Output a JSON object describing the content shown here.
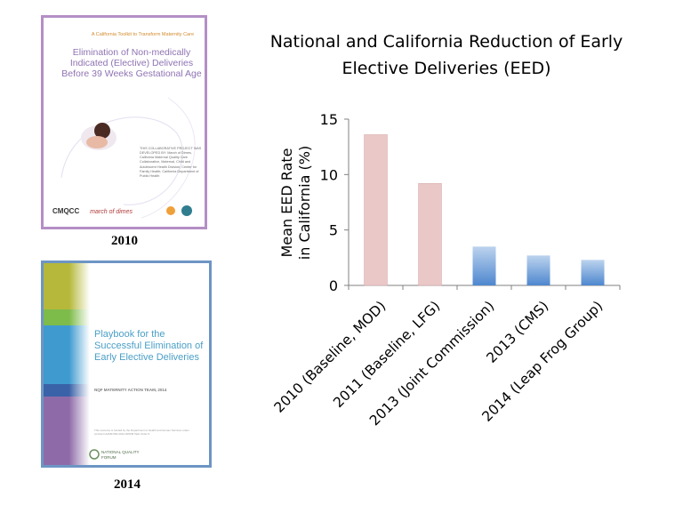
{
  "cover_2010": {
    "tagline": "A California Toolkit to Transform Maternity Care",
    "title": "Elimination of Non-medically Indicated (Elective) Deliveries Before 39 Weeks Gestational Age",
    "credits": "THIS COLLABORATIVE PROJECT WAS DEVELOPED BY: March of Dimes, California Maternal Quality Care Collaborative, Maternal, Child and Adolescent Health Division; Center for Family Health; California Department of Public Health",
    "logo_1": "CMQCC",
    "logo_2": "march of dimes",
    "year": "2010"
  },
  "cover_2014": {
    "title": "Playbook for the Successful Elimination of Early Elective Deliveries",
    "subtitle": "NQF MATERNITY ACTION TEAM, 2014",
    "fine_print": "This resource is funded by the Department of Health and Human Services under contract HHSM-500-2012-00009I Task Order 6.",
    "org": "NATIONAL QUALITY FORUM",
    "year": "2014",
    "colors": {
      "band_olive": "#b5b83a",
      "band_green": "#7dbb4a",
      "band_blue": "#3f9ad0",
      "band_navy": "#3a62a8",
      "band_purple": "#8e6ba8"
    }
  },
  "chart_data": {
    "type": "bar",
    "title": "National and California Reduction of Early Elective Deliveries (EED)",
    "ylabel": "Mean EED Rate in California (%)",
    "ylabel_lines": [
      "Mean EED Rate",
      "in California (%)"
    ],
    "categories": [
      "2010 (Baseline, MOD)",
      "2011 (Baseline, LFG)",
      "2013 (Joint Commission)",
      "2013 (CMS)",
      "2014 (Leap Frog Group)"
    ],
    "values": [
      13.6,
      9.2,
      3.5,
      2.7,
      2.3
    ],
    "ylim": [
      0,
      15
    ],
    "yticks": [
      0,
      5,
      10,
      15
    ],
    "grid": false,
    "colors": {
      "baseline": "#eac8c8",
      "baseline_edge": "#d8a9a9",
      "current_top": "#bcd3ee",
      "current_bottom": "#4e87cf"
    },
    "baseline_count": 2
  }
}
